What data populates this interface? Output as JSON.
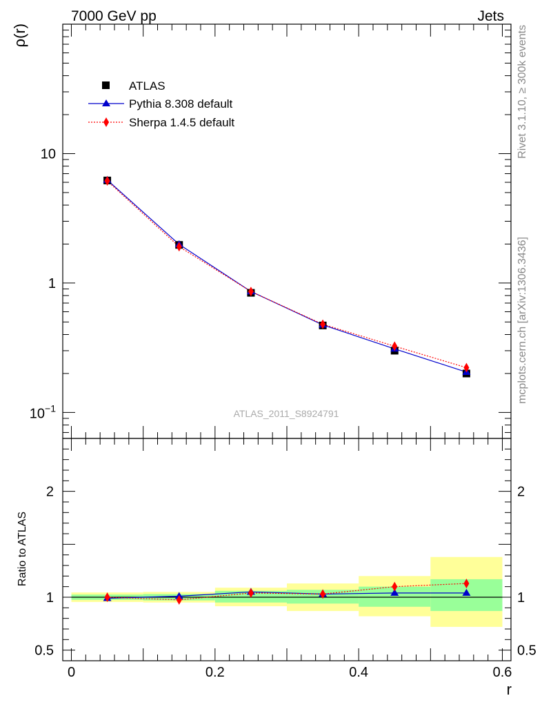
{
  "header": {
    "left": "7000 GeV pp",
    "right": "Jets"
  },
  "side_labels": {
    "rivet": "Rivet 3.1.10, ≥ 300k events",
    "mcplots": "mcplots.cern.ch [arXiv:1306.3436]"
  },
  "watermark": "ATLAS_2011_S8924791",
  "colors": {
    "atlas": "#000000",
    "pythia": "#0000cc",
    "sherpa": "#ff0000",
    "band_inner": "#99ff99",
    "band_outer": "#ffff99"
  },
  "chart_data": [
    {
      "type": "line",
      "scale": "log",
      "ylabel": "ρ(r)",
      "xlim": [
        -0.012,
        0.612
      ],
      "ylim": [
        0.063,
        100
      ],
      "y_ticks": [
        {
          "value": 0.1,
          "base": "10",
          "exp": "−1"
        },
        {
          "value": 1,
          "label": "1"
        },
        {
          "value": 10,
          "label": "10"
        }
      ],
      "x": [
        0.05,
        0.15,
        0.25,
        0.35,
        0.45,
        0.55
      ],
      "legend": [
        {
          "name": "ATLAS",
          "marker": "square"
        },
        {
          "name": "Pythia 8.308 default",
          "marker": "triangle"
        },
        {
          "name": "Sherpa 1.4.5 default",
          "marker": "diamond"
        }
      ],
      "series": [
        {
          "name": "ATLAS",
          "values": [
            6.2,
            1.97,
            0.84,
            0.47,
            0.3,
            0.2
          ]
        },
        {
          "name": "Pythia 8.308 default",
          "values": [
            6.25,
            1.99,
            0.86,
            0.475,
            0.31,
            0.205
          ]
        },
        {
          "name": "Sherpa 1.4.5 default",
          "values": [
            6.15,
            1.91,
            0.86,
            0.48,
            0.325,
            0.222
          ]
        }
      ]
    },
    {
      "type": "line",
      "xlabel": "r",
      "ylabel": "Ratio to ATLAS",
      "xlim": [
        -0.012,
        0.612
      ],
      "ylim": [
        0.4,
        2.5
      ],
      "y_ticks": [
        {
          "value": 0.5,
          "label": "0.5"
        },
        {
          "value": 1,
          "label": "1"
        },
        {
          "value": 2,
          "label": "2"
        }
      ],
      "x_ticks": [
        {
          "value": 0,
          "label": "0"
        },
        {
          "value": 0.2,
          "label": "0.2"
        },
        {
          "value": 0.4,
          "label": "0.4"
        },
        {
          "value": 0.6,
          "label": "0.6"
        }
      ],
      "x": [
        0.05,
        0.15,
        0.25,
        0.35,
        0.45,
        0.55
      ],
      "bins": [
        [
          0.0,
          0.1
        ],
        [
          0.1,
          0.2
        ],
        [
          0.2,
          0.3
        ],
        [
          0.3,
          0.4
        ],
        [
          0.4,
          0.5
        ],
        [
          0.5,
          0.6
        ]
      ],
      "band_inner": [
        [
          0.975,
          1.025
        ],
        [
          0.97,
          1.03
        ],
        [
          0.95,
          1.06
        ],
        [
          0.94,
          1.07
        ],
        [
          0.91,
          1.1
        ],
        [
          0.87,
          1.17
        ]
      ],
      "band_outer": [
        [
          0.955,
          1.045
        ],
        [
          0.95,
          1.05
        ],
        [
          0.915,
          1.09
        ],
        [
          0.87,
          1.13
        ],
        [
          0.82,
          1.2
        ],
        [
          0.72,
          1.38
        ]
      ],
      "series": [
        {
          "name": "Pythia 8.308 default",
          "values": [
            0.99,
            1.01,
            1.05,
            1.03,
            1.04,
            1.04
          ]
        },
        {
          "name": "Sherpa 1.4.5 default",
          "values": [
            1.0,
            0.975,
            1.04,
            1.03,
            1.1,
            1.13
          ]
        }
      ]
    }
  ]
}
